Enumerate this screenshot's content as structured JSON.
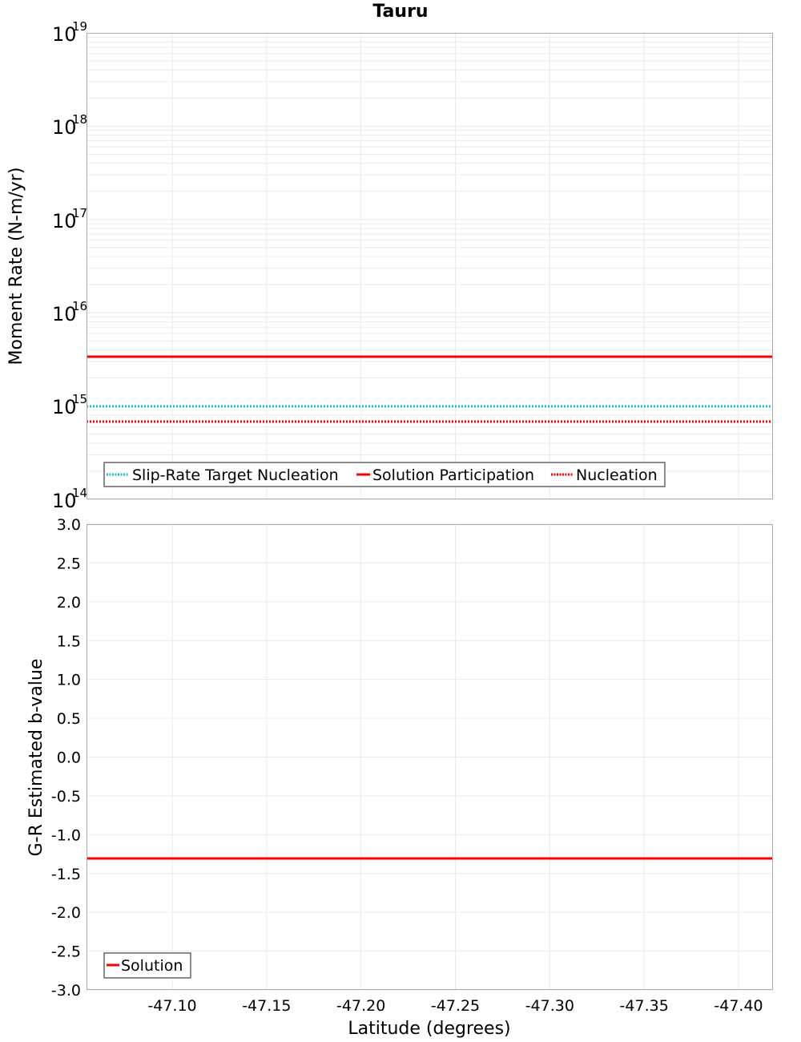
{
  "title": "Tauru",
  "colors": {
    "solution": "#ff0000",
    "slip_rate_target": "#17becf",
    "grid": "#ebebeb",
    "axis": "#aaaaaa"
  },
  "chart_data": [
    {
      "type": "line",
      "title": "Tauru",
      "xlabel": "Latitude (degrees)",
      "ylabel": "Moment Rate (N-m/yr)",
      "yscale": "log",
      "ylim": [
        100000000000000.0,
        1e+19
      ],
      "xlim": [
        -47.0546,
        -47.418
      ],
      "x_inverted": true,
      "grid": true,
      "ytick_labels": [
        "10^14",
        "10^15",
        "10^16",
        "10^17",
        "10^18",
        "10^19"
      ],
      "legend_position": "lower-left-inside",
      "x": [
        -47.0546,
        -47.418
      ],
      "series": [
        {
          "name": "Slip-Rate Target Nucleation",
          "style": "dotted",
          "color": "#17becf",
          "values": [
            1000000000000000.0,
            1000000000000000.0
          ]
        },
        {
          "name": "Solution Participation",
          "style": "solid",
          "color": "#ff0000",
          "values": [
            3400000000000000.0,
            3400000000000000.0
          ]
        },
        {
          "name": "Nucleation",
          "style": "dotted",
          "color": "#ff0000",
          "values": [
            680000000000000.0,
            680000000000000.0
          ]
        }
      ]
    },
    {
      "type": "line",
      "xlabel": "Latitude (degrees)",
      "ylabel": "G-R Estimated b-value",
      "ylim": [
        -3.0,
        3.0
      ],
      "xlim": [
        -47.0546,
        -47.418
      ],
      "x_inverted": true,
      "grid": true,
      "ytick_labels": [
        "3.0",
        "2.5",
        "2.0",
        "1.5",
        "1.0",
        "0.5",
        "0.0",
        "-0.5",
        "-1.0",
        "-1.5",
        "-2.0",
        "-2.5",
        "-3.0"
      ],
      "xtick_labels": [
        "-47.10",
        "-47.15",
        "-47.20",
        "-47.25",
        "-47.30",
        "-47.35",
        "-47.40"
      ],
      "legend_position": "lower-left-inside",
      "x": [
        -47.0546,
        -47.418
      ],
      "series": [
        {
          "name": "Solution",
          "style": "solid",
          "color": "#ff0000",
          "values": [
            -1.31,
            -1.31
          ]
        }
      ]
    }
  ],
  "top": {
    "ylabel": "Moment Rate (N-m/yr)",
    "yticks": [
      {
        "base": "10",
        "exp": "19"
      },
      {
        "base": "10",
        "exp": "18"
      },
      {
        "base": "10",
        "exp": "17"
      },
      {
        "base": "10",
        "exp": "16"
      },
      {
        "base": "10",
        "exp": "15"
      },
      {
        "base": "10",
        "exp": "14"
      }
    ],
    "legend": [
      "Slip-Rate Target Nucleation",
      "Solution Participation",
      "Nucleation"
    ]
  },
  "bottom": {
    "ylabel": "G-R Estimated b-value",
    "yticks": [
      "3.0",
      "2.5",
      "2.0",
      "1.5",
      "1.0",
      "0.5",
      "0.0",
      "-0.5",
      "-1.0",
      "-1.5",
      "-2.0",
      "-2.5",
      "-3.0"
    ],
    "xticks": [
      "-47.10",
      "-47.15",
      "-47.20",
      "-47.25",
      "-47.30",
      "-47.35",
      "-47.40"
    ],
    "xlabel": "Latitude (degrees)",
    "legend": [
      "Solution"
    ]
  }
}
